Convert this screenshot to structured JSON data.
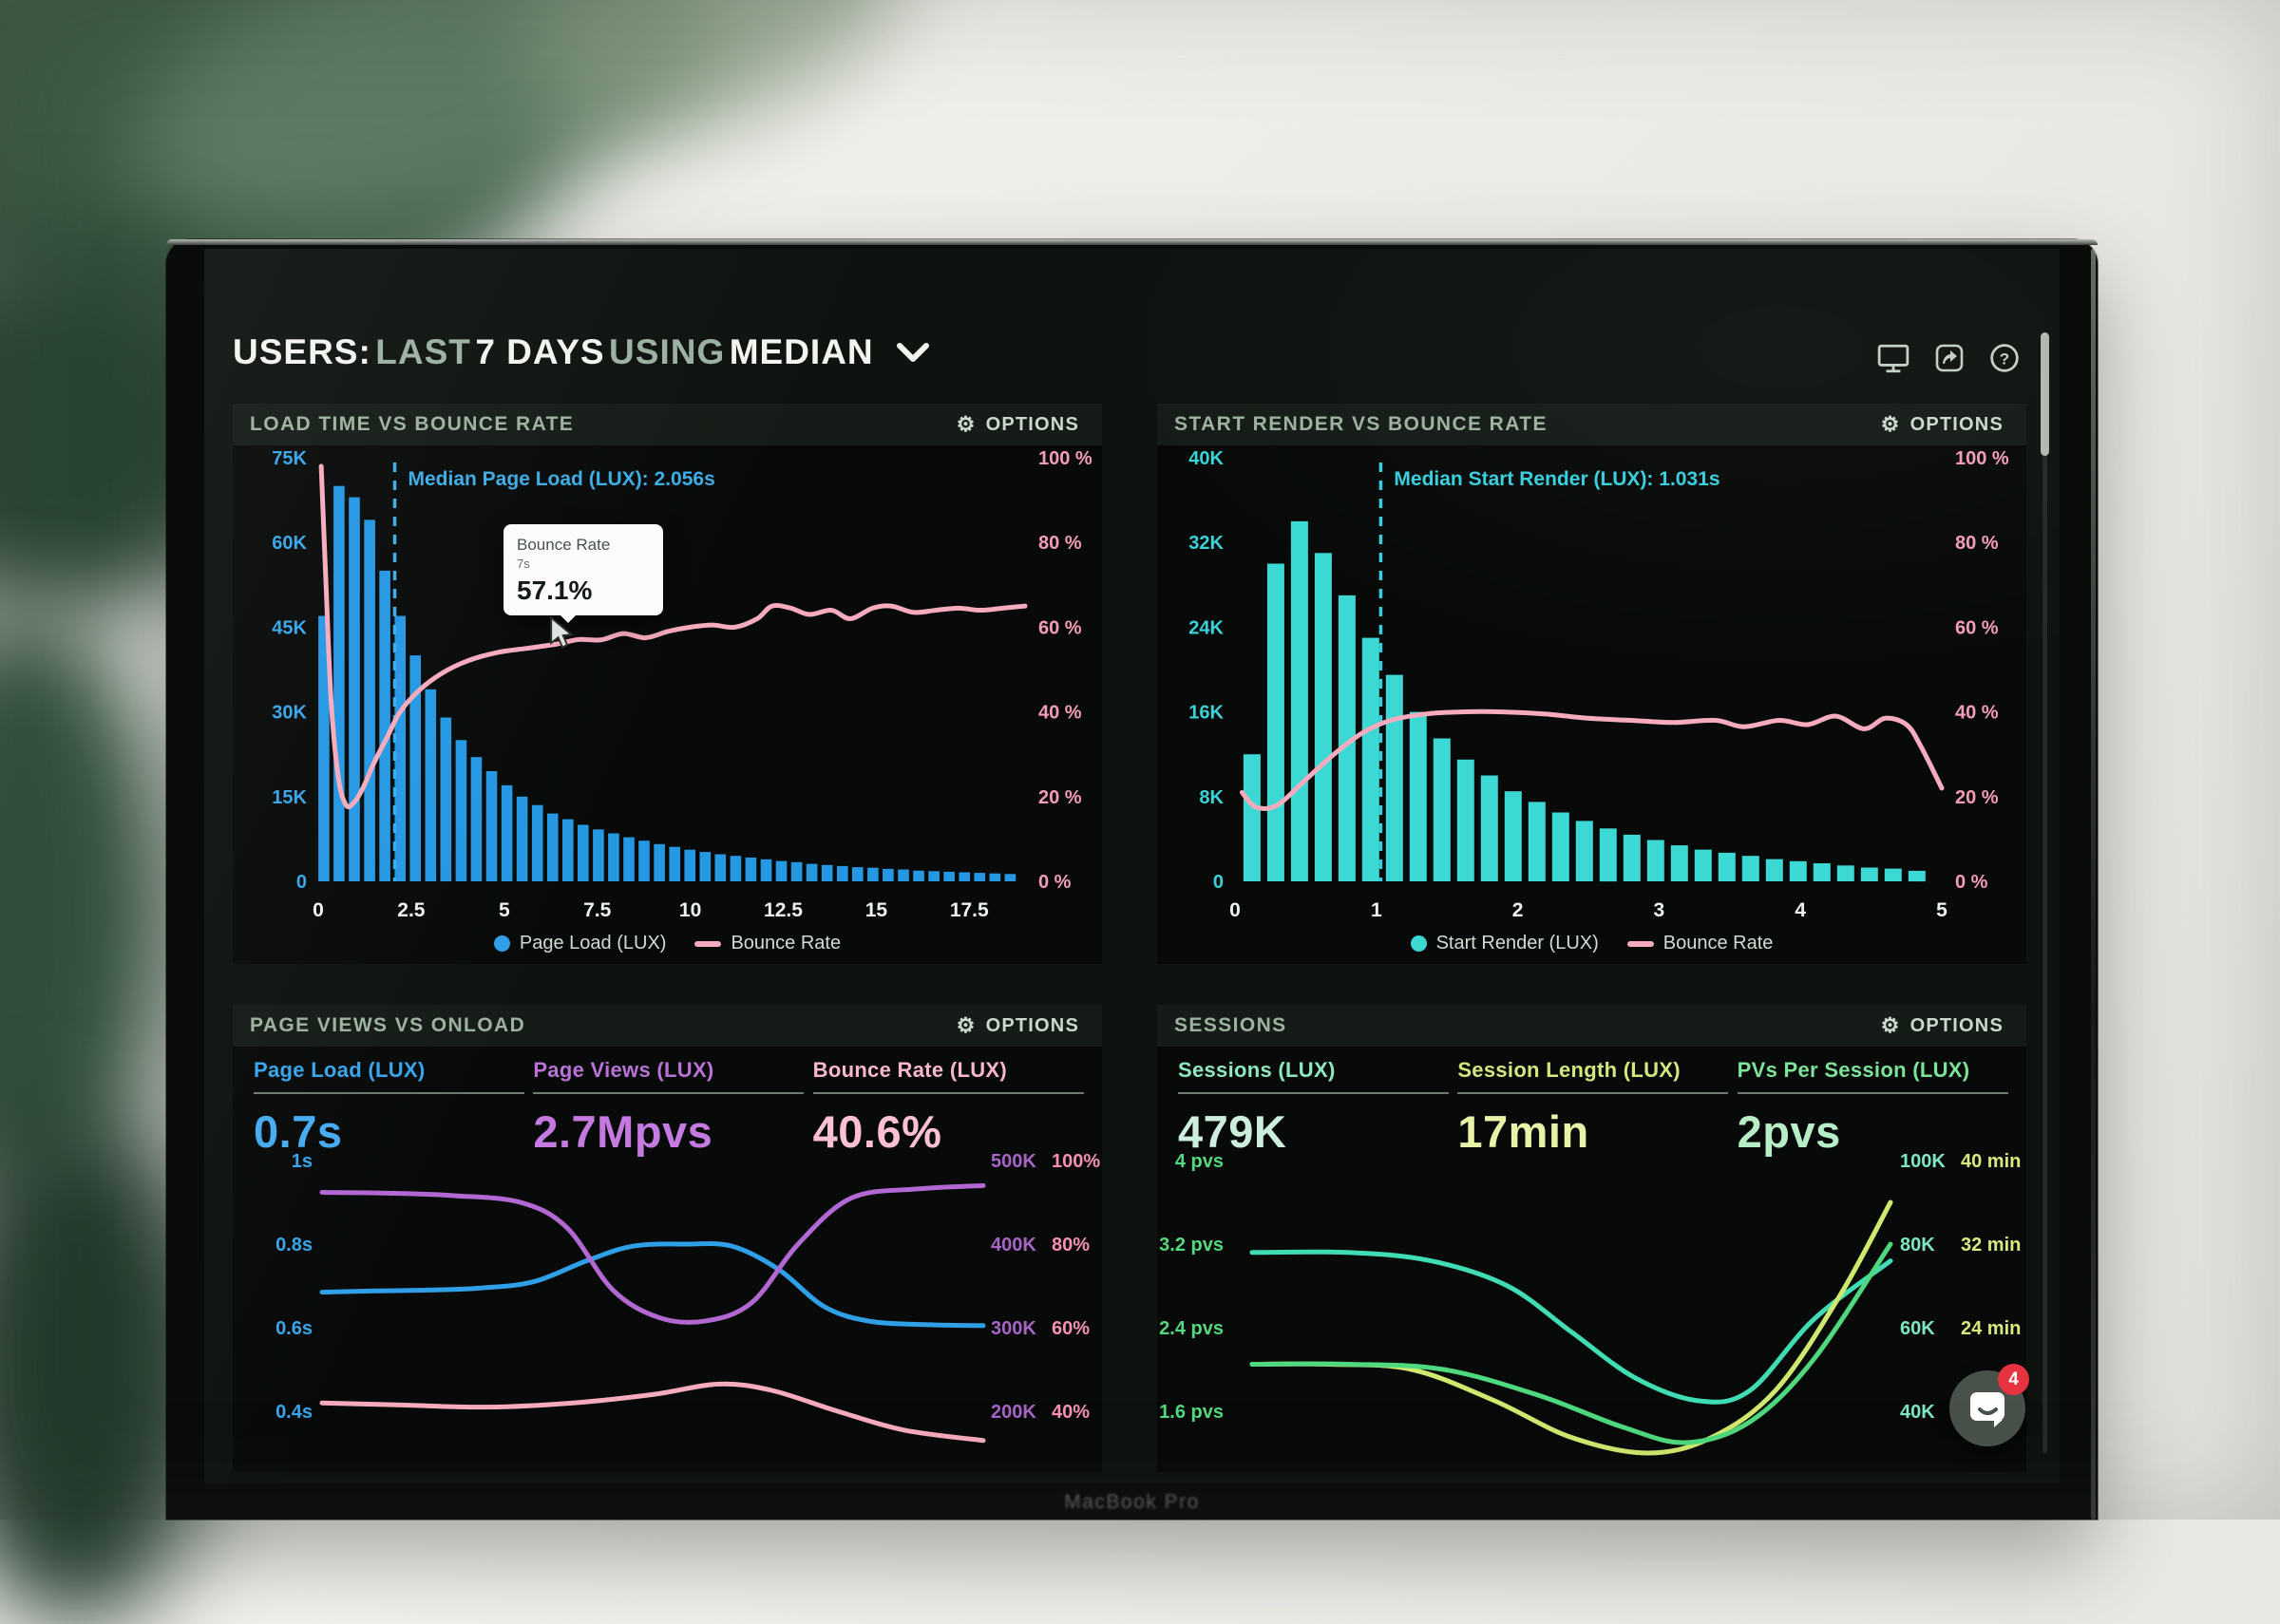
{
  "header": {
    "title_segments": [
      {
        "text": "USERS:",
        "tone": "bright"
      },
      {
        "text": "LAST",
        "tone": "muted"
      },
      {
        "text": "7 DAYS",
        "tone": "bright"
      },
      {
        "text": "USING",
        "tone": "muted"
      },
      {
        "text": "MEDIAN",
        "tone": "bright"
      }
    ],
    "toolbar_icons": [
      "display-icon",
      "share-icon",
      "help-icon"
    ]
  },
  "options_label": "OPTIONS",
  "device": {
    "bottom_label": "MacBook Pro"
  },
  "chat_widget": {
    "badge": "4"
  },
  "chart_data": [
    {
      "type": "histogram+line",
      "title": "LOAD TIME VS BOUNCE RATE",
      "x_unit": "seconds",
      "x_max": 19,
      "x_ticks": [
        "0",
        "2.5",
        "5",
        "7.5",
        "10",
        "12.5",
        "15",
        "17.5"
      ],
      "left_axis": {
        "ticks": [
          "75K",
          "60K",
          "45K",
          "30K",
          "15K",
          "0"
        ],
        "max_k": 75,
        "color": "#38a5ea"
      },
      "right_axis": {
        "ticks": [
          "100 %",
          "80 %",
          "60 %",
          "40 %",
          "20 %",
          "0 %"
        ],
        "max_pct": 100,
        "color": "#f59cb8"
      },
      "bars": {
        "name": "Page Load (LUX)",
        "color": "#2598e4",
        "first_center_s": 0.15,
        "step_s": 0.41,
        "values_k": [
          47,
          70,
          68,
          64,
          55,
          47,
          40,
          34,
          29,
          25,
          22,
          19.5,
          17,
          15,
          13.5,
          12,
          11,
          10,
          9.2,
          8.5,
          7.8,
          7.2,
          6.6,
          6.1,
          5.6,
          5.2,
          4.8,
          4.5,
          4.2,
          3.9,
          3.6,
          3.4,
          3.1,
          2.9,
          2.7,
          2.5,
          2.4,
          2.2,
          2.1,
          1.9,
          1.8,
          1.7,
          1.6,
          1.5,
          1.4,
          1.3
        ]
      },
      "line": {
        "name": "Bounce Rate",
        "color": "#f6abbf",
        "points_s_pct": [
          [
            0.08,
            98
          ],
          [
            0.2,
            72
          ],
          [
            0.35,
            42
          ],
          [
            0.55,
            24
          ],
          [
            0.75,
            18
          ],
          [
            0.95,
            18.5
          ],
          [
            1.2,
            22
          ],
          [
            1.5,
            28
          ],
          [
            1.85,
            34
          ],
          [
            2.2,
            40
          ],
          [
            2.7,
            45
          ],
          [
            3.3,
            49
          ],
          [
            4,
            52
          ],
          [
            4.8,
            54
          ],
          [
            5.6,
            55
          ],
          [
            6.4,
            56
          ],
          [
            7,
            57.1
          ],
          [
            7.6,
            57
          ],
          [
            8.2,
            58.5
          ],
          [
            8.8,
            57.5
          ],
          [
            9.4,
            59
          ],
          [
            10,
            60
          ],
          [
            10.6,
            60.5
          ],
          [
            11.2,
            60
          ],
          [
            11.8,
            62
          ],
          [
            12.2,
            65
          ],
          [
            12.7,
            64.5
          ],
          [
            13.2,
            63
          ],
          [
            13.8,
            64
          ],
          [
            14.3,
            62
          ],
          [
            14.9,
            64.5
          ],
          [
            15.4,
            65
          ],
          [
            16,
            63.5
          ],
          [
            16.6,
            64
          ],
          [
            17.2,
            64.5
          ],
          [
            17.8,
            64
          ],
          [
            18.4,
            64.5
          ],
          [
            19,
            65
          ]
        ]
      },
      "median": {
        "x_s": 2.056,
        "label": "Median Page Load (LUX): 2.056s",
        "color": "#3dade6"
      },
      "tooltip": {
        "title": "Bounce Rate",
        "subtitle": "7s",
        "value": "57.1%"
      },
      "legend": [
        {
          "label": "Page Load (LUX)",
          "swatch": "dot",
          "color": "#2f9fe8"
        },
        {
          "label": "Bounce Rate",
          "swatch": "dash",
          "color": "#f6abbf"
        }
      ]
    },
    {
      "type": "histogram+line",
      "title": "START RENDER VS BOUNCE RATE",
      "x_unit": "seconds",
      "x_max": 5,
      "x_ticks": [
        "0",
        "1",
        "2",
        "3",
        "4",
        "5"
      ],
      "left_axis": {
        "ticks": [
          "40K",
          "32K",
          "24K",
          "16K",
          "8K",
          "0"
        ],
        "max_k": 40,
        "color": "#3ad2d8"
      },
      "right_axis": {
        "ticks": [
          "100 %",
          "80 %",
          "60 %",
          "40 %",
          "20 %",
          "0 %"
        ],
        "max_pct": 100,
        "color": "#f59cb8"
      },
      "bars": {
        "name": "Start Render (LUX)",
        "color": "#3bd8d4",
        "first_center_s": 0.12,
        "step_s": 0.168,
        "values_k": [
          12,
          30,
          34,
          31,
          27,
          23,
          19.5,
          16,
          13.5,
          11.5,
          10,
          8.5,
          7.5,
          6.5,
          5.7,
          5,
          4.4,
          3.9,
          3.4,
          3,
          2.7,
          2.4,
          2.1,
          1.9,
          1.7,
          1.5,
          1.3,
          1.2,
          1
        ]
      },
      "line": {
        "name": "Bounce Rate",
        "color": "#f6abbf",
        "points_s_pct": [
          [
            0.05,
            21
          ],
          [
            0.15,
            17.5
          ],
          [
            0.3,
            18
          ],
          [
            0.5,
            24
          ],
          [
            0.7,
            30
          ],
          [
            0.9,
            35
          ],
          [
            1.1,
            38
          ],
          [
            1.35,
            39.5
          ],
          [
            1.6,
            40
          ],
          [
            1.9,
            40
          ],
          [
            2.2,
            39.5
          ],
          [
            2.5,
            38.5
          ],
          [
            2.8,
            38
          ],
          [
            3.1,
            37.5
          ],
          [
            3.4,
            38
          ],
          [
            3.6,
            36.5
          ],
          [
            3.85,
            38
          ],
          [
            4.05,
            37
          ],
          [
            4.25,
            39
          ],
          [
            4.45,
            36
          ],
          [
            4.6,
            38.5
          ],
          [
            4.75,
            37
          ],
          [
            4.85,
            32
          ],
          [
            5,
            22
          ]
        ]
      },
      "median": {
        "x_s": 1.031,
        "label": "Median Start Render (LUX): 1.031s",
        "color": "#37cfe0"
      },
      "legend": [
        {
          "label": "Start Render (LUX)",
          "swatch": "dot",
          "color": "#3bd8d4"
        },
        {
          "label": "Bounce Rate",
          "swatch": "dash",
          "color": "#f6abbf"
        }
      ]
    },
    {
      "type": "multi-line",
      "title": "PAGE VIEWS VS ONLOAD",
      "metrics": [
        {
          "label": "Page Load (LUX)",
          "value": "0.7s",
          "label_color": "#3aa4ec",
          "value_color": "#46abf2"
        },
        {
          "label": "Page Views (LUX)",
          "value": "2.7Mpvs",
          "label_color": "#bb72d8",
          "value_color": "#c47ae0"
        },
        {
          "label": "Bounce Rate (LUX)",
          "value": "40.6%",
          "label_color": "#f9b7cb",
          "value_color": "#fbc0d2"
        }
      ],
      "axes": {
        "left": {
          "ticks": [
            "1s",
            "0.8s",
            "0.6s",
            "0.4s"
          ],
          "color": "#38a5ea"
        },
        "right_inner": {
          "ticks": [
            "500K",
            "400K",
            "300K",
            "200K"
          ],
          "color": "#a765c8"
        },
        "right_outer": {
          "ticks": [
            "100%",
            "80%",
            "60%",
            "40%"
          ],
          "color": "#f590b2"
        }
      },
      "series": [
        {
          "name": "Page Load (LUX)",
          "unit": "s",
          "color": "#2f9fe8",
          "top_tick_value": 1.0,
          "bottom_tick_value": 0.4,
          "points": [
            [
              0,
              0.685
            ],
            [
              0.08,
              0.688
            ],
            [
              0.16,
              0.69
            ],
            [
              0.24,
              0.695
            ],
            [
              0.32,
              0.71
            ],
            [
              0.4,
              0.76
            ],
            [
              0.47,
              0.795
            ],
            [
              0.55,
              0.8
            ],
            [
              0.62,
              0.795
            ],
            [
              0.69,
              0.74
            ],
            [
              0.76,
              0.65
            ],
            [
              0.83,
              0.615
            ],
            [
              0.92,
              0.607
            ],
            [
              1,
              0.605
            ]
          ]
        },
        {
          "name": "Page Views (LUX)",
          "unit": "K",
          "color": "#b168d2",
          "top_tick_value": 500,
          "bottom_tick_value": 200,
          "points": [
            [
              0,
              462
            ],
            [
              0.1,
              461
            ],
            [
              0.2,
              458
            ],
            [
              0.3,
              450
            ],
            [
              0.37,
              420
            ],
            [
              0.44,
              345
            ],
            [
              0.51,
              312
            ],
            [
              0.58,
              308
            ],
            [
              0.65,
              330
            ],
            [
              0.72,
              400
            ],
            [
              0.8,
              455
            ],
            [
              0.9,
              466
            ],
            [
              1,
              470
            ]
          ]
        },
        {
          "name": "Bounce Rate (LUX)",
          "unit": "%",
          "color": "#f6abbf",
          "top_tick_value": 100,
          "bottom_tick_value": 40,
          "points": [
            [
              0,
              42
            ],
            [
              0.12,
              41.5
            ],
            [
              0.25,
              41
            ],
            [
              0.38,
              42
            ],
            [
              0.5,
              44
            ],
            [
              0.6,
              46.5
            ],
            [
              0.68,
              45
            ],
            [
              0.78,
              40
            ],
            [
              0.88,
              35.5
            ],
            [
              1,
              33
            ]
          ]
        }
      ]
    },
    {
      "type": "multi-line",
      "title": "SESSIONS",
      "metrics": [
        {
          "label": "Sessions (LUX)",
          "value": "479K",
          "label_color": "#8fe8c0",
          "value_color": "#cdeedd"
        },
        {
          "label": "Session Length (LUX)",
          "value": "17min",
          "label_color": "#d5e87d",
          "value_color": "#e9f2a6"
        },
        {
          "label": "PVs Per Session (LUX)",
          "value": "2pvs",
          "label_color": "#7ce39a",
          "value_color": "#b7eec6"
        }
      ],
      "axes": {
        "left": {
          "ticks": [
            "4 pvs",
            "3.2 pvs",
            "2.4 pvs",
            "1.6 pvs"
          ],
          "color": "#55d77f"
        },
        "right_inner": {
          "ticks": [
            "100K",
            "80K",
            "60K",
            "40K"
          ],
          "color": "#7fe6c2"
        },
        "right_outer": {
          "ticks": [
            "40 min",
            "32 min",
            "24 min"
          ],
          "color": "#d9e97f"
        }
      },
      "series": [
        {
          "name": "Sessions (LUX)",
          "unit": "K",
          "color": "#40ddb5",
          "top_tick_value": 100,
          "bottom_tick_value": 40,
          "points": [
            [
              0,
              78
            ],
            [
              0.15,
              78
            ],
            [
              0.28,
              76
            ],
            [
              0.4,
              70
            ],
            [
              0.5,
              59
            ],
            [
              0.6,
              48
            ],
            [
              0.7,
              42.5
            ],
            [
              0.78,
              45
            ],
            [
              0.88,
              62
            ],
            [
              1,
              76
            ]
          ]
        },
        {
          "name": "Session Length (LUX)",
          "unit": "min",
          "color": "#cfe86e",
          "top_tick_value": 40,
          "bottom_tick_value": 16,
          "points": [
            [
              0,
              20.5
            ],
            [
              0.12,
              20.5
            ],
            [
              0.25,
              20
            ],
            [
              0.38,
              17
            ],
            [
              0.5,
              13.5
            ],
            [
              0.62,
              12
            ],
            [
              0.72,
              13.5
            ],
            [
              0.82,
              18
            ],
            [
              0.92,
              27
            ],
            [
              1,
              36
            ]
          ]
        },
        {
          "name": "PVs Per Session (LUX)",
          "unit": "pvs",
          "color": "#4ed97e",
          "top_tick_value": 4,
          "bottom_tick_value": 1.6,
          "points": [
            [
              0,
              2.05
            ],
            [
              0.15,
              2.05
            ],
            [
              0.3,
              2
            ],
            [
              0.45,
              1.75
            ],
            [
              0.58,
              1.45
            ],
            [
              0.68,
              1.3
            ],
            [
              0.78,
              1.5
            ],
            [
              0.88,
              2.1
            ],
            [
              1,
              3.2
            ]
          ]
        }
      ]
    }
  ]
}
